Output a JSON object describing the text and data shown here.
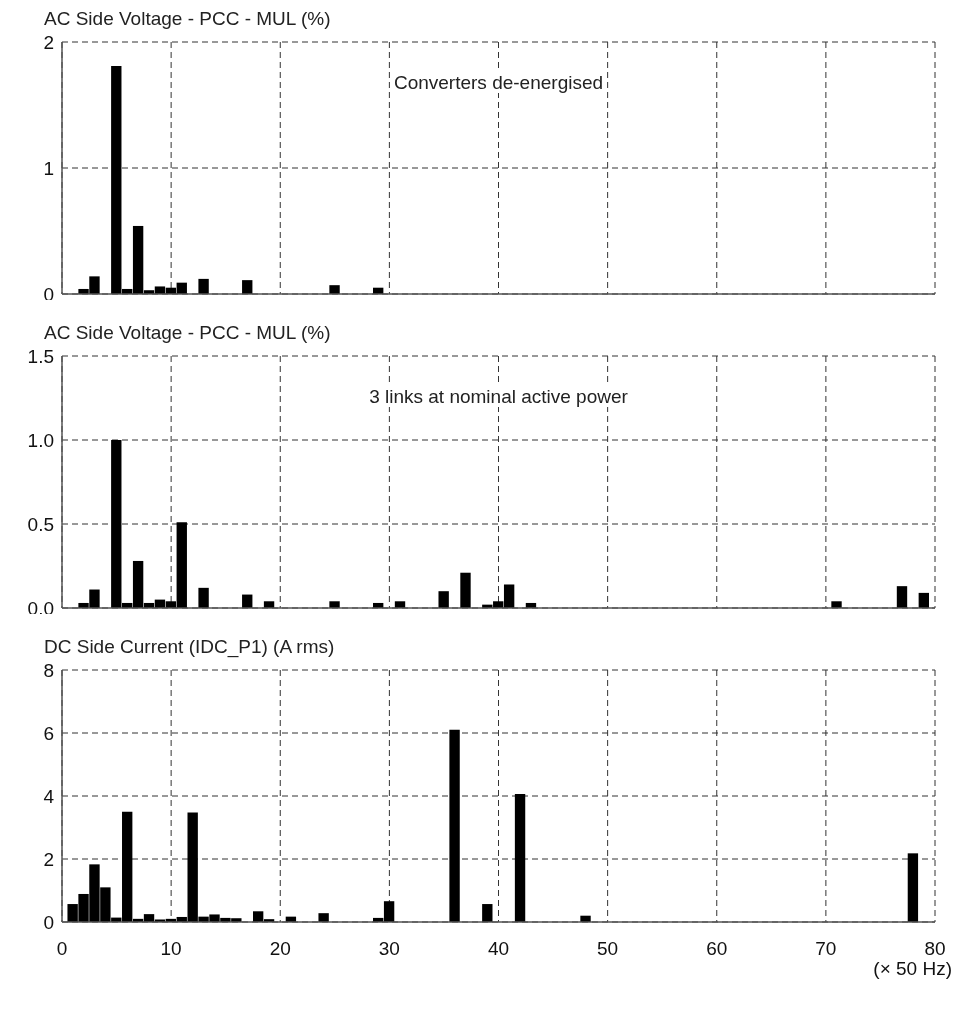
{
  "chart_data": [
    {
      "type": "bar",
      "title": "AC Side Voltage - PCC - MUL (%)",
      "annotations": [
        "Converters de-energised"
      ],
      "x": [
        2,
        3,
        5,
        6,
        7,
        8,
        9,
        10,
        11,
        13,
        17,
        25,
        29
      ],
      "values": [
        0.04,
        0.14,
        1.81,
        0.04,
        0.54,
        0.03,
        0.06,
        0.05,
        0.09,
        0.12,
        0.11,
        0.07,
        0.05
      ],
      "color": "#000000",
      "xlim": [
        0,
        80
      ],
      "xticks": [
        0,
        10,
        20,
        30,
        40,
        50,
        60,
        70,
        80
      ],
      "ylim": [
        0,
        2
      ],
      "yticks": [
        0,
        1,
        2
      ],
      "grid": true,
      "tick_labels": "y"
    },
    {
      "type": "bar",
      "title": "AC Side Voltage - PCC - MUL (%)",
      "annotations": [
        "3 links at nominal active power"
      ],
      "x": [
        2,
        3,
        5,
        6,
        7,
        8,
        9,
        10,
        11,
        13,
        17,
        19,
        25,
        29,
        31,
        35,
        37,
        39,
        40,
        41,
        43,
        71,
        77,
        79
      ],
      "values": [
        0.03,
        0.11,
        1.0,
        0.03,
        0.28,
        0.03,
        0.05,
        0.04,
        0.51,
        0.12,
        0.08,
        0.04,
        0.04,
        0.03,
        0.04,
        0.1,
        0.21,
        0.02,
        0.04,
        0.14,
        0.03,
        0.04,
        0.13,
        0.09
      ],
      "color": "#000000",
      "xlim": [
        0,
        80
      ],
      "xticks": [
        0,
        10,
        20,
        30,
        40,
        50,
        60,
        70,
        80
      ],
      "ylim": [
        0,
        1.5
      ],
      "yticks": [
        {
          "value": 0,
          "label": "0.0"
        },
        {
          "value": 0.5,
          "label": "0.5"
        },
        {
          "value": 1,
          "label": "1.0"
        },
        {
          "value": 1.5,
          "label": "1.5"
        }
      ],
      "grid": true,
      "tick_labels": "y"
    },
    {
      "type": "bar",
      "title": "DC Side Current (IDC_P1) (A rms)",
      "xlabel": "(× 50 Hz)",
      "x": [
        1,
        2,
        3,
        4,
        5,
        6,
        7,
        8,
        9,
        10,
        11,
        12,
        13,
        14,
        15,
        16,
        17,
        18,
        19,
        20,
        21,
        22,
        24,
        29,
        30,
        36,
        39,
        42,
        48,
        78
      ],
      "values": [
        0.57,
        0.89,
        1.83,
        1.1,
        0.14,
        3.5,
        0.1,
        0.25,
        0.08,
        0.1,
        0.16,
        3.48,
        0.17,
        0.24,
        0.13,
        0.12,
        null,
        0.34,
        0.09,
        null,
        0.17,
        null,
        0.28,
        0.13,
        0.66,
        6.1,
        0.57,
        4.06,
        0.2,
        2.18
      ],
      "color": "#000000",
      "xlim": [
        0,
        80
      ],
      "xticks": [
        0,
        10,
        20,
        30,
        40,
        50,
        60,
        70,
        80
      ],
      "ylim": [
        0,
        8
      ],
      "yticks": [
        0,
        2,
        4,
        6,
        8
      ],
      "grid": true
    }
  ]
}
